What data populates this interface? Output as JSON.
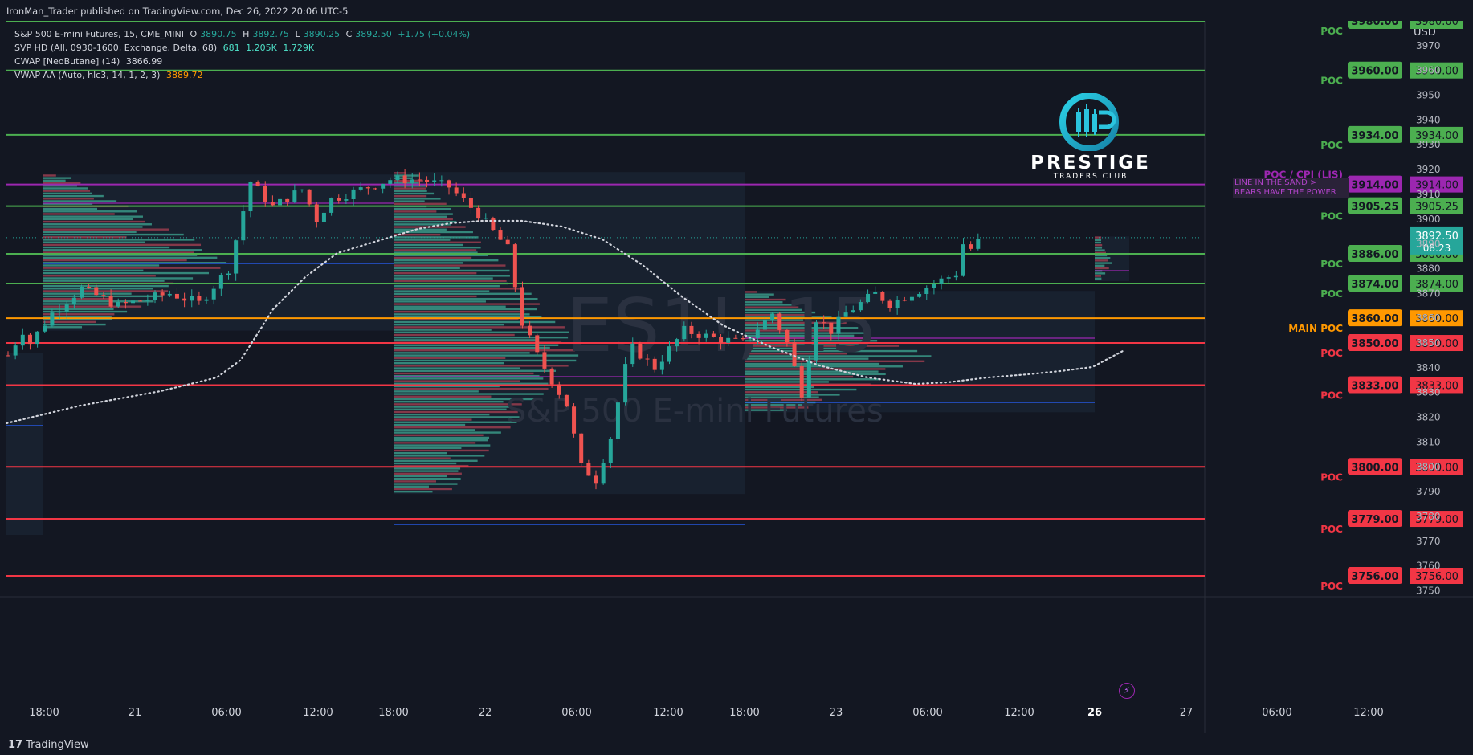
{
  "header": {
    "published": "IronMan_Trader published on TradingView.com, Dec 26, 2022 20:06 UTC-5"
  },
  "legend": {
    "symbol": "S&P 500 E-mini Futures, 15, CME_MINI",
    "o_label": "O",
    "o_val": "3890.75",
    "h_label": "H",
    "h_val": "3892.75",
    "l_label": "L",
    "l_val": "3890.25",
    "c_label": "C",
    "c_val": "3892.50",
    "change": "+1.75 (+0.04%)",
    "svp_name": "SVP HD (All, 0930-1600, Exchange, Delta, 68)",
    "svp_v1": "681",
    "svp_v2": "1.205K",
    "svp_v3": "1.729K",
    "cwap_name": "CWAP [NeoButane] (14)",
    "cwap_val": "3866.99",
    "vwap_name": "VWAP AA (Auto, hlc3, 14, 1, 2, 3)",
    "vwap_val": "3889.72"
  },
  "watermark": {
    "symbol": "ES1!, 15",
    "name": "S&P 500 E-mini Futures"
  },
  "logo": {
    "title": "PRESTIGE",
    "subtitle": "TRADERS CLUB"
  },
  "note": {
    "line1": "LINE IN THE SAND >",
    "line2": "BEARS HAVE THE POWER"
  },
  "footer": {
    "brand": "TradingView"
  },
  "colors": {
    "bg": "#131722",
    "green": "#4caf50",
    "red": "#f23645",
    "purple": "#9c27b0",
    "orange": "#ff9800",
    "teal": "#26a69a"
  },
  "chart_data": {
    "type": "candlestick",
    "symbol": "ES1!",
    "interval": "15",
    "currency": "USD",
    "ylim": [
      3744,
      3981
    ],
    "y_ticks": [
      3750,
      3760,
      3770,
      3780,
      3790,
      3800,
      3810,
      3820,
      3830,
      3840,
      3850,
      3860,
      3870,
      3880,
      3890,
      3900,
      3910,
      3920,
      3930,
      3940,
      3950,
      3960,
      3970
    ],
    "x_ticks": [
      "18:00",
      "21",
      "06:00",
      "12:00",
      "18:00",
      "22",
      "06:00",
      "12:00",
      "18:00",
      "23",
      "06:00",
      "12:00",
      "26",
      "27",
      "06:00",
      "12:00"
    ],
    "levels": [
      {
        "price": 3980.0,
        "label": "3980.00",
        "tag": "POC",
        "color": "#4caf50"
      },
      {
        "price": 3960.0,
        "label": "3960.00",
        "tag": "POC",
        "color": "#4caf50"
      },
      {
        "price": 3934.0,
        "label": "3934.00",
        "tag": "POC",
        "color": "#4caf50"
      },
      {
        "price": 3914.0,
        "label": "3914.00",
        "tag": "POC / CPI (LIS)",
        "color": "#9c27b0"
      },
      {
        "price": 3905.25,
        "label": "3905.25",
        "tag": "POC",
        "color": "#4caf50"
      },
      {
        "price": 3886.0,
        "label": "3886.00",
        "tag": "POC",
        "color": "#4caf50"
      },
      {
        "price": 3874.0,
        "label": "3874.00",
        "tag": "POC",
        "color": "#4caf50"
      },
      {
        "price": 3860.0,
        "label": "3860.00",
        "tag": "MAIN POC",
        "color": "#ff9800"
      },
      {
        "price": 3850.0,
        "label": "3850.00",
        "tag": "POC",
        "color": "#f23645"
      },
      {
        "price": 3833.0,
        "label": "3833.00",
        "tag": "POC",
        "color": "#f23645"
      },
      {
        "price": 3800.0,
        "label": "3800.00",
        "tag": "POC",
        "color": "#f23645"
      },
      {
        "price": 3779.0,
        "label": "3779.00",
        "tag": "POC",
        "color": "#f23645"
      },
      {
        "price": 3756.0,
        "label": "3756.00",
        "tag": "POC",
        "color": "#f23645"
      }
    ],
    "last_price": "3892.50",
    "countdown": "08:23",
    "session_profiles": [
      {
        "session": "Dec 20 18:00 - Dec 21 18:00",
        "high": 3918,
        "low": 3855
      },
      {
        "session": "Dec 21 18:00 - Dec 22 18:00",
        "high": 3919,
        "low": 3789
      },
      {
        "session": "Dec 22 18:00 - Dec 23 17:00",
        "high": 3871,
        "low": 3822
      },
      {
        "session": "Dec 25 18:00 -",
        "high": 3893,
        "low": 3875
      }
    ],
    "price_path": [
      [
        0,
        3845
      ],
      [
        2,
        3855
      ],
      [
        3,
        3850
      ],
      [
        6,
        3862
      ],
      [
        10,
        3872
      ],
      [
        15,
        3865
      ],
      [
        22,
        3870
      ],
      [
        26,
        3866
      ],
      [
        30,
        3880
      ],
      [
        33,
        3915
      ],
      [
        36,
        3905
      ],
      [
        40,
        3912
      ],
      [
        42,
        3900
      ],
      [
        44,
        3908
      ],
      [
        48,
        3912
      ],
      [
        52,
        3916
      ],
      [
        56,
        3916
      ],
      [
        60,
        3913
      ],
      [
        64,
        3902
      ],
      [
        68,
        3888
      ],
      [
        70,
        3858
      ],
      [
        72,
        3845
      ],
      [
        76,
        3825
      ],
      [
        78,
        3800
      ],
      [
        80,
        3795
      ],
      [
        82,
        3812
      ],
      [
        84,
        3840
      ],
      [
        85,
        3848
      ],
      [
        88,
        3840
      ],
      [
        92,
        3855
      ],
      [
        96,
        3852
      ],
      [
        100,
        3850
      ],
      [
        104,
        3862
      ],
      [
        106,
        3850
      ],
      [
        108,
        3830
      ],
      [
        110,
        3860
      ],
      [
        112,
        3855
      ],
      [
        114,
        3862
      ],
      [
        118,
        3870
      ],
      [
        120,
        3866
      ],
      [
        129,
        3878
      ],
      [
        130,
        3890
      ],
      [
        131,
        3888
      ],
      [
        132,
        3891
      ],
      [
        133,
        3892.5
      ]
    ]
  }
}
